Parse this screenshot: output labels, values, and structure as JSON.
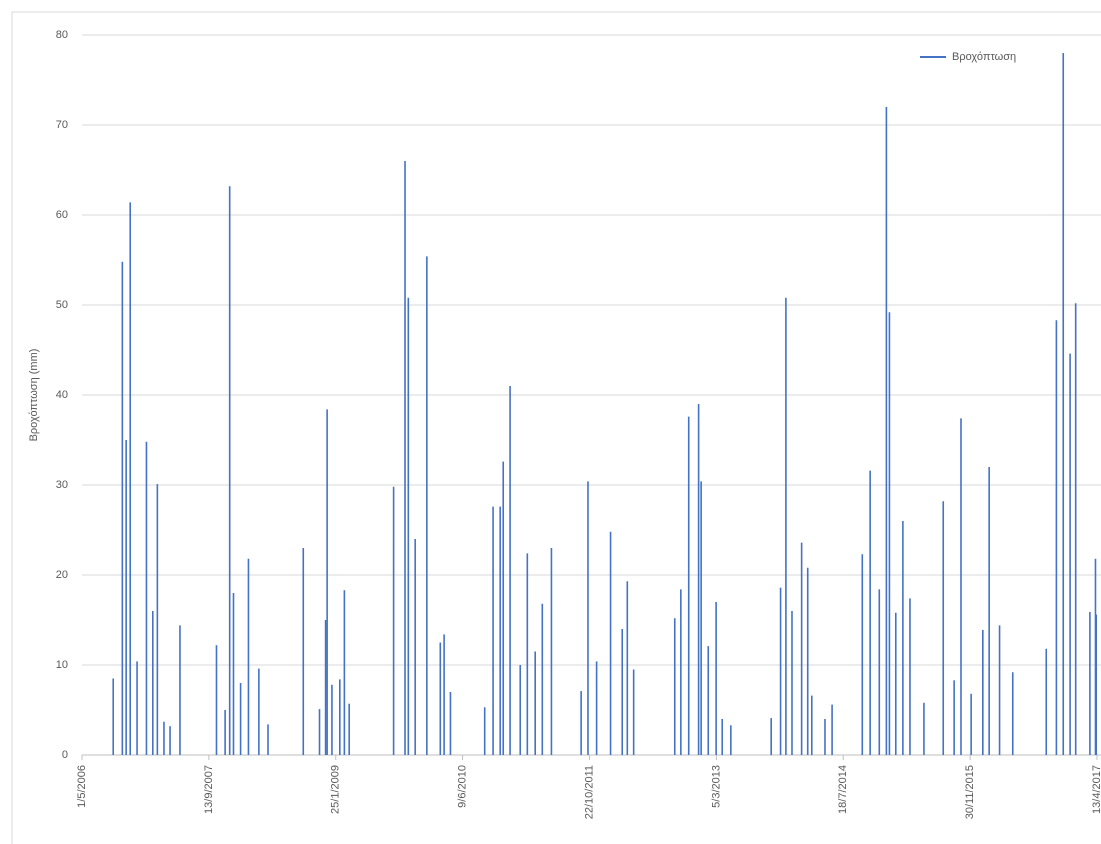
{
  "chart_data": {
    "type": "bar",
    "y_label": "Βροχόπτωση (mm)",
    "series": [
      {
        "name": "Βροχόπτωση",
        "color": "#4472c4",
        "x": [
          "1/9/2006",
          "7/10/2006",
          "22/10/2006",
          "7/11/2006",
          "4/12/2006",
          "10/1/2007",
          "4/2/2007",
          "22/2/2007",
          "20/3/2007",
          "13/4/2007",
          "22/5/2007",
          "13/10/2007",
          "16/11/2007",
          "4/12/2007",
          "19/12/2007",
          "16/1/2008",
          "16/2/2008",
          "28/3/2008",
          "3/5/2008",
          "19/9/2008",
          "22/11/2008",
          "16/12/2008",
          "22/12/2008",
          "10/1/2009",
          "10/2/2009",
          "28/2/2009",
          "19/3/2009",
          "10/9/2009",
          "25/10/2009",
          "7/11/2009",
          "4/12/2009",
          "19/1/2010",
          "13/3/2010",
          "28/3/2010",
          "22/4/2010",
          "4/9/2010",
          "7/10/2010",
          "4/11/2010",
          "16/11/2010",
          "13/12/2010",
          "22/1/2011",
          "19/2/2011",
          "22/3/2011",
          "19/4/2011",
          "25/5/2011",
          "19/9/2011",
          "16/10/2011",
          "19/11/2011",
          "13/1/2012",
          "28/2/2012",
          "19/3/2012",
          "13/4/2012",
          "22/9/2012",
          "16/10/2012",
          "16/11/2012",
          "25/12/2012",
          "4/1/2013",
          "1/2/2013",
          "4/3/2013",
          "28/3/2013",
          "1/5/2013",
          "7/10/2013",
          "13/11/2013",
          "4/12/2013",
          "28/12/2013",
          "4/2/2014",
          "28/2/2014",
          "16/3/2014",
          "7/5/2014",
          "4/6/2014",
          "1/10/2014",
          "1/11/2014",
          "7/12/2014",
          "4/1/2015",
          "16/1/2015",
          "10/2/2015",
          "10/3/2015",
          "7/4/2015",
          "1/6/2015",
          "16/8/2015",
          "28/9/2015",
          "25/10/2015",
          "4/12/2015",
          "19/1/2016",
          "13/2/2016",
          "25/3/2016",
          "16/5/2016",
          "25/9/2016",
          "4/11/2016",
          "1/12/2016",
          "28/12/2016",
          "19/1/2017",
          "16/3/2017",
          "7/4/2017",
          "10/4/2017"
        ],
        "values": [
          8.5,
          54.8,
          35,
          61.4,
          10.4,
          34.8,
          16,
          30.1,
          3.7,
          3.2,
          14.4,
          12.2,
          5,
          63.2,
          18,
          8,
          21.8,
          9.6,
          3.4,
          23,
          5.1,
          15,
          38.4,
          7.8,
          8.4,
          18.3,
          5.7,
          29.8,
          66,
          50.8,
          24,
          55.4,
          12.5,
          13.4,
          7,
          5.3,
          27.6,
          27.6,
          32.6,
          41,
          10,
          22.4,
          11.5,
          16.8,
          23,
          7.1,
          30.4,
          10.4,
          24.8,
          14,
          19.3,
          9.5,
          15.2,
          18.4,
          37.6,
          39,
          30.4,
          12.1,
          17,
          4,
          3.3,
          4.1,
          18.6,
          50.8,
          16,
          23.6,
          20.8,
          6.6,
          4,
          5.6,
          22.3,
          31.6,
          18.4,
          72,
          49.2,
          15.8,
          26,
          17.4,
          5.8,
          28.2,
          8.3,
          37.4,
          6.8,
          13.9,
          32,
          14.4,
          9.2,
          11.8,
          48.3,
          78,
          44.6,
          50.2,
          15.9,
          21.8,
          15.6
        ]
      }
    ],
    "xlim": [
      "1/5/2006",
      "13/4/2017"
    ],
    "xticks": [
      "1/5/2006",
      "13/9/2007",
      "25/1/2009",
      "9/6/2010",
      "22/10/2011",
      "5/3/2013",
      "18/7/2014",
      "30/11/2015",
      "13/4/2017"
    ],
    "ylim": [
      0,
      80
    ],
    "yticks": [
      0,
      10,
      20,
      30,
      40,
      50,
      60,
      70,
      80
    ],
    "grid": true,
    "legend": "top-right"
  }
}
